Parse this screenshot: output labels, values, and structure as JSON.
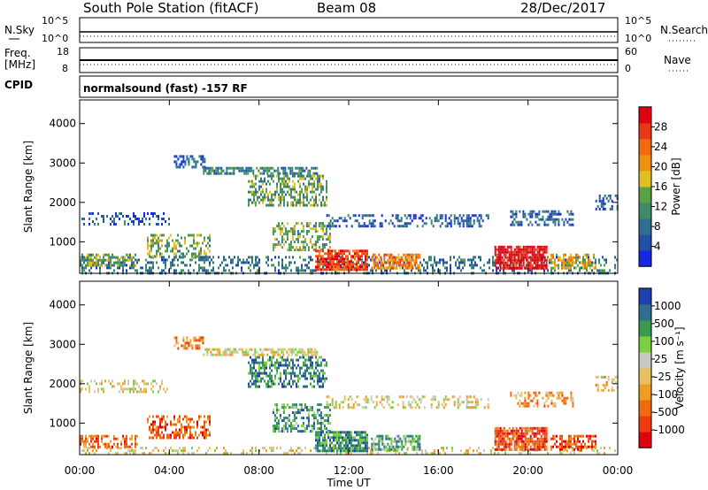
{
  "header": {
    "station": "South Pole Station (fitACF)",
    "beam": "Beam 08",
    "date": "28/Dec/2017"
  },
  "nsky_panel": {
    "left_label": "N.Sky",
    "left_ticks": [
      "10^5",
      "10^0"
    ],
    "right_label": "N.Search",
    "right_ticks": [
      "10^5",
      "10^0"
    ]
  },
  "freq_panel": {
    "left_label_1": "Freq.",
    "left_label_2": "[MHz]",
    "left_ticks": [
      "18",
      "8"
    ],
    "right_label": "Nave",
    "right_ticks": [
      "60",
      "0"
    ]
  },
  "cpid_panel": {
    "label": "CPID",
    "text": "normalsound (fast) -157 RF"
  },
  "x_axis": {
    "ticks": [
      "00:00",
      "04:00",
      "08:00",
      "12:00",
      "16:00",
      "20:00",
      "00:00"
    ],
    "label": "Time UT"
  },
  "colors": {
    "power": [
      "#1428e6",
      "#2050a8",
      "#2e6e8e",
      "#3c8c6a",
      "#5aa044",
      "#e0c020",
      "#f09010",
      "#f06a10",
      "#e83818",
      "#e00010"
    ],
    "velocity": [
      "#e00010",
      "#f03a10",
      "#f06a10",
      "#f09c20",
      "#e8c060",
      "#c8c8c0",
      "#7ad040",
      "#3a9a50",
      "#2e6e8e",
      "#2040b0"
    ]
  },
  "chart_data": [
    {
      "type": "heatmap",
      "name": "power",
      "ylabel": "Slant Range [km]",
      "y_ticks": [
        1000,
        2000,
        3000,
        4000
      ],
      "ylim": [
        200,
        4600
      ],
      "xlim_hours": [
        0,
        24
      ],
      "colorbar": {
        "label": "Power [dB]",
        "ticks": [
          "4",
          "8",
          "12",
          "16",
          "20",
          "24",
          "28"
        ],
        "range": [
          0,
          32
        ]
      },
      "features": [
        {
          "t0": 0.0,
          "t1": 24.0,
          "r0": 200,
          "r1": 640,
          "level": 0.25,
          "density": 0.35
        },
        {
          "t0": 0.0,
          "t1": 2.6,
          "r0": 400,
          "r1": 700,
          "level": 0.45,
          "density": 0.6
        },
        {
          "t0": 3.0,
          "t1": 5.8,
          "r0": 600,
          "r1": 1200,
          "level": 0.45,
          "density": 0.45
        },
        {
          "t0": 0.0,
          "t1": 4.0,
          "r0": 1450,
          "r1": 1750,
          "level": 0.15,
          "density": 0.35
        },
        {
          "t0": 4.2,
          "t1": 5.6,
          "r0": 2900,
          "r1": 3200,
          "level": 0.2,
          "density": 0.5
        },
        {
          "t0": 5.5,
          "t1": 10.6,
          "r0": 2700,
          "r1": 2900,
          "level": 0.3,
          "density": 0.7
        },
        {
          "t0": 7.5,
          "t1": 11.0,
          "r0": 1900,
          "r1": 2700,
          "level": 0.4,
          "density": 0.5
        },
        {
          "t0": 8.6,
          "t1": 11.2,
          "r0": 800,
          "r1": 1500,
          "level": 0.45,
          "density": 0.5
        },
        {
          "t0": 10.5,
          "t1": 12.8,
          "r0": 300,
          "r1": 800,
          "level": 0.85,
          "density": 0.85
        },
        {
          "t0": 13.0,
          "t1": 15.2,
          "r0": 300,
          "r1": 700,
          "level": 0.7,
          "density": 0.7
        },
        {
          "t0": 11.0,
          "t1": 18.2,
          "r0": 1400,
          "r1": 1700,
          "level": 0.2,
          "density": 0.4
        },
        {
          "t0": 18.5,
          "t1": 20.8,
          "r0": 300,
          "r1": 900,
          "level": 0.95,
          "density": 0.85
        },
        {
          "t0": 19.2,
          "t1": 22.0,
          "r0": 1450,
          "r1": 1800,
          "level": 0.2,
          "density": 0.5
        },
        {
          "t0": 21.0,
          "t1": 23.0,
          "r0": 300,
          "r1": 700,
          "level": 0.6,
          "density": 0.6
        },
        {
          "t0": 23.0,
          "t1": 24.0,
          "r0": 1800,
          "r1": 2200,
          "level": 0.2,
          "density": 0.4
        }
      ]
    },
    {
      "type": "heatmap",
      "name": "velocity",
      "ylabel": "Slant Range [km]",
      "y_ticks": [
        1000,
        2000,
        3000,
        4000
      ],
      "ylim": [
        200,
        4600
      ],
      "xlim_hours": [
        0,
        24
      ],
      "colorbar": {
        "label": "Velocity [m s⁻¹]",
        "ticks": [
          "1000",
          "500",
          "100",
          "25",
          "-25",
          "-100",
          "-500",
          "-1000"
        ],
        "range": [
          -1500,
          1500
        ]
      },
      "features": [
        {
          "t0": 0.0,
          "t1": 24.0,
          "r0": 200,
          "r1": 400,
          "level": 0.5,
          "density": 0.3
        },
        {
          "t0": 0.0,
          "t1": 2.6,
          "r0": 400,
          "r1": 700,
          "level": 0.25,
          "density": 0.55
        },
        {
          "t0": 3.0,
          "t1": 5.8,
          "r0": 600,
          "r1": 1200,
          "level": 0.2,
          "density": 0.45
        },
        {
          "t0": 0.0,
          "t1": 4.0,
          "r0": 1800,
          "r1": 2100,
          "level": 0.5,
          "density": 0.3
        },
        {
          "t0": 4.2,
          "t1": 5.6,
          "r0": 2900,
          "r1": 3200,
          "level": 0.3,
          "density": 0.4
        },
        {
          "t0": 5.5,
          "t1": 10.6,
          "r0": 2700,
          "r1": 2900,
          "level": 0.5,
          "density": 0.65
        },
        {
          "t0": 7.5,
          "t1": 11.0,
          "r0": 1900,
          "r1": 2700,
          "level": 0.8,
          "density": 0.5
        },
        {
          "t0": 8.6,
          "t1": 11.2,
          "r0": 800,
          "r1": 1500,
          "level": 0.75,
          "density": 0.5
        },
        {
          "t0": 10.5,
          "t1": 12.8,
          "r0": 300,
          "r1": 800,
          "level": 0.78,
          "density": 0.8
        },
        {
          "t0": 13.0,
          "t1": 15.2,
          "r0": 300,
          "r1": 700,
          "level": 0.72,
          "density": 0.65
        },
        {
          "t0": 11.0,
          "t1": 18.2,
          "r0": 1400,
          "r1": 1700,
          "level": 0.5,
          "density": 0.35
        },
        {
          "t0": 18.5,
          "t1": 20.8,
          "r0": 300,
          "r1": 900,
          "level": 0.18,
          "density": 0.85
        },
        {
          "t0": 19.2,
          "t1": 22.0,
          "r0": 1450,
          "r1": 1800,
          "level": 0.35,
          "density": 0.45
        },
        {
          "t0": 21.0,
          "t1": 23.0,
          "r0": 300,
          "r1": 700,
          "level": 0.2,
          "density": 0.6
        },
        {
          "t0": 23.0,
          "t1": 24.0,
          "r0": 1800,
          "r1": 2200,
          "level": 0.45,
          "density": 0.4
        }
      ]
    }
  ]
}
